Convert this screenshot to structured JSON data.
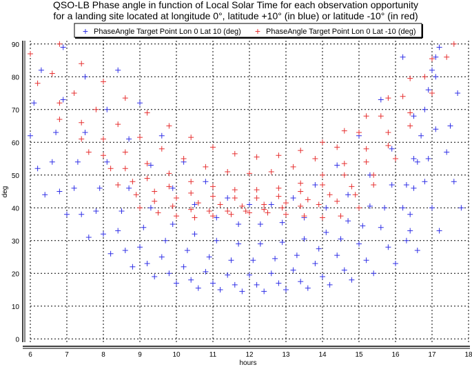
{
  "chart_data": {
    "type": "scatter",
    "title_lines": [
      "QSO-LB Phase angle in function of Local Solar Time for each observation opportunity",
      "for a landing site located at longitude 0°, latitude +10° (in blue) or latitude -10° (in red)"
    ],
    "xlabel": "hours",
    "ylabel": "deg",
    "xlim": [
      6,
      18
    ],
    "ylim": [
      -1,
      91
    ],
    "xticks": [
      "6",
      "7",
      "8",
      "9",
      "10",
      "11",
      "12",
      "13",
      "14",
      "15",
      "16",
      "17",
      "18"
    ],
    "yticks": [
      "0",
      "10",
      "20",
      "30",
      "40",
      "50",
      "60",
      "70",
      "80",
      "90"
    ],
    "grid": true,
    "legend_position": "top",
    "marker": "+",
    "series": [
      {
        "name": "PhaseAngle Target Point Lon 0 Lat 10 (deg)",
        "color": "#2f2fe6",
        "curves": [
          {
            "x": [
              6.4,
              7.0,
              7.6,
              8.2,
              8.8,
              9.4,
              10.0,
              10.6,
              11.2,
              11.8,
              12.4,
              13.0,
              13.6,
              14.2,
              14.8,
              15.4,
              16.0,
              16.6,
              17.2,
              17.8
            ],
            "y": [
              44,
              38,
              31,
              26,
              22,
              19,
              17,
              15.5,
              15,
              14.5,
              14.5,
              15,
              15.5,
              16.5,
              18,
              20,
              23,
              27,
              33,
              40
            ]
          },
          {
            "x": [
              6.2,
              6.8,
              7.4,
              8.0,
              8.6,
              9.2,
              9.8,
              10.4,
              11.0,
              11.6,
              12.2,
              12.8,
              13.4,
              14.0,
              14.6,
              15.2,
              15.8,
              16.4,
              17.0,
              17.6
            ],
            "y": [
              52,
              45,
              38,
              32,
              27,
              23,
              20,
              18,
              17,
              16.5,
              16.5,
              17,
              17.5,
              19,
              21,
              24,
              28,
              33,
              40,
              48
            ]
          },
          {
            "x": [
              6.0,
              6.6,
              7.2,
              7.8,
              8.4,
              9.0,
              9.6,
              10.2,
              10.8,
              11.4,
              12.0,
              12.6,
              13.2,
              13.8,
              14.4,
              15.0,
              15.6,
              16.2,
              16.8,
              17.4
            ],
            "y": [
              62,
              54,
              46,
              39,
              33,
              28,
              25,
              22,
              20.5,
              19.5,
              19.5,
              20,
              21,
              23,
              25.5,
              29,
              34,
              40,
              48,
              57
            ]
          },
          {
            "x": [
              6.1,
              6.7,
              7.3,
              7.9,
              8.5,
              9.1,
              9.7,
              10.3,
              10.9,
              11.5,
              12.1,
              12.7,
              13.3,
              13.9,
              14.5,
              15.1,
              15.7,
              16.3,
              16.9,
              17.5
            ],
            "y": [
              72,
              63,
              54,
              46,
              39,
              34,
              30,
              27,
              25,
              24,
              24,
              24.5,
              25.5,
              27.5,
              30.5,
              34.5,
              40,
              47,
              55,
              65
            ]
          },
          {
            "x": [
              6.3,
              6.9,
              7.5,
              8.1,
              8.7,
              9.3,
              9.9,
              10.5,
              11.1,
              11.7,
              12.3,
              12.9,
              13.5,
              14.1,
              14.7,
              15.3,
              15.9,
              16.5,
              17.1,
              17.7
            ],
            "y": [
              82,
              73,
              63,
              54,
              46,
              40,
              35,
              32,
              30,
              29,
              29,
              29.5,
              30.5,
              32.5,
              36,
              40.5,
              47,
              55,
              64,
              75
            ]
          },
          {
            "x": [
              6.9,
              7.5,
              8.1,
              8.7,
              9.3,
              9.9,
              10.5,
              11.1,
              11.7,
              12.3,
              12.9,
              13.5,
              14.1,
              14.7,
              15.3,
              15.9,
              16.5,
              17.1
            ],
            "y": [
              89,
              80,
              70,
              61,
              53,
              46,
              41,
              37,
              35,
              35,
              35.5,
              37,
              40,
              44,
              50,
              58,
              68,
              80
            ]
          },
          {
            "x": [
              8.4,
              9.0,
              9.6,
              10.2,
              10.8,
              11.4,
              12.0,
              12.6,
              13.2,
              13.8,
              14.4,
              15.0,
              15.6,
              16.2
            ],
            "y": [
              82,
              72,
              62,
              54,
              48,
              43,
              41,
              41,
              43,
              47,
              53,
              62,
              73,
              86
            ]
          },
          {
            "x": [
              16.3,
              16.4,
              16.5,
              16.6,
              16.7,
              16.8,
              16.9,
              17.0,
              17.1,
              17.2
            ],
            "y": [
              30,
              38,
              46,
              54,
              62,
              70,
              76,
              82,
              86,
              89
            ]
          }
        ]
      },
      {
        "name": "PhaseAngle Target Point Lon 0 Lat -10 (deg)",
        "color": "#e62f2f",
        "curves": [
          {
            "x": [
              9.0,
              9.5,
              10.0,
              10.5,
              11.0,
              11.5,
              12.0,
              12.5,
              13.0,
              13.5,
              14.0,
              14.5,
              15.0
            ],
            "y": [
              40,
              38.5,
              37.5,
              37,
              37.5,
              38,
              38.5,
              38.5,
              38,
              37.5,
              37,
              37.5,
              40
            ]
          },
          {
            "x": [
              8.4,
              8.9,
              9.4,
              9.9,
              10.4,
              10.9,
              11.4,
              11.9,
              12.4,
              12.9,
              13.4,
              13.9,
              14.4,
              14.9,
              15.4
            ],
            "y": [
              47,
              44,
              42,
              40.5,
              39.5,
              39,
              39,
              39,
              39.5,
              40,
              40.5,
              41,
              42,
              44,
              47
            ]
          },
          {
            "x": [
              7.6,
              8.2,
              8.8,
              9.4,
              10.0,
              10.6,
              11.2,
              11.8,
              12.4,
              13.0,
              13.6,
              14.2,
              14.8,
              15.4,
              16.0
            ],
            "y": [
              57,
              52,
              48,
              45,
              43,
              41.5,
              41,
              40.5,
              41,
              41.5,
              42.5,
              44,
              46.5,
              50,
              55
            ]
          },
          {
            "x": [
              6.8,
              7.4,
              8.0,
              8.6,
              9.2,
              9.8,
              10.4,
              11.0,
              11.6,
              12.2,
              12.8,
              13.4,
              14.0,
              14.6,
              15.2,
              15.8,
              16.4
            ],
            "y": [
              67,
              61,
              56,
              52,
              49,
              46.5,
              44.5,
              43.5,
              43,
              43,
              43.5,
              45,
              47,
              50,
              54,
              59,
              65
            ]
          },
          {
            "x": [
              6.2,
              6.8,
              7.4,
              8.0,
              8.6,
              9.2,
              9.8,
              10.4,
              11.0,
              11.6,
              12.2,
              12.8,
              13.4,
              14.0,
              14.6,
              15.2,
              15.8,
              16.4,
              17.0
            ],
            "y": [
              78,
              72,
              66,
              61,
              57,
              53.5,
              50.5,
              48,
              46.5,
              45.5,
              45.5,
              46,
              47.5,
              50,
              53.5,
              58,
              63,
              69,
              75
            ]
          },
          {
            "x": [
              6.0,
              6.6,
              7.2,
              7.8,
              8.4,
              9.0,
              9.6,
              10.2,
              10.8,
              11.4,
              12.0,
              12.6,
              13.2,
              13.8,
              14.4,
              15.0,
              15.6,
              16.2,
              16.8,
              17.4
            ],
            "y": [
              87,
              81,
              75,
              70,
              65.5,
              61.5,
              58,
              55,
              52.5,
              51,
              50.5,
              51,
              52.5,
              55,
              58.5,
              63,
              68,
              74,
              80,
              86
            ]
          },
          {
            "x": [
              6.8,
              7.4,
              8.0,
              8.6,
              9.2,
              9.8,
              10.4,
              11.0,
              11.6,
              12.2,
              12.8,
              13.4,
              14.0,
              14.6,
              15.2,
              15.8,
              16.4,
              17.0,
              17.6
            ],
            "y": [
              90,
              84,
              78.5,
              73.5,
              69,
              65,
              61.5,
              58.5,
              56.5,
              55.5,
              56,
              57.5,
              60,
              63.5,
              68,
              73.5,
              79.5,
              85.5,
              90
            ]
          }
        ]
      }
    ]
  }
}
